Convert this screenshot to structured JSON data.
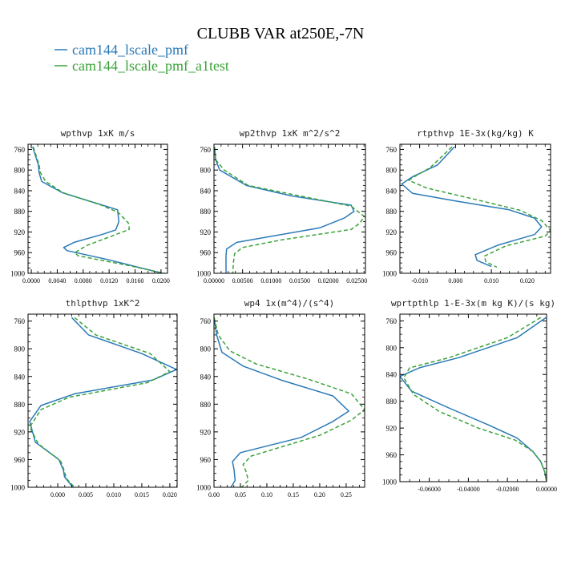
{
  "figure": {
    "title": "CLUBB VAR at250E,-7N"
  },
  "legend": [
    {
      "name": "cam144_lscale_pmf",
      "color": "#2a7ab8",
      "dash": "solid"
    },
    {
      "name": "cam144_lscale_pmf_a1test",
      "color": "#3aa33a",
      "dash": "dashed"
    }
  ],
  "chart_data": [
    {
      "type": "line",
      "title": "wpthvp  1xK m/s",
      "xlim": [
        -0.0005,
        0.021
      ],
      "ylim": [
        1000,
        750
      ],
      "xticks": [
        0.0,
        0.004,
        0.008,
        0.012,
        0.016,
        0.02
      ],
      "xtick_labels": [
        "0.0000",
        "0.0040",
        "0.0080",
        "0.0120",
        "0.0160",
        "0.0200"
      ],
      "yticks": [
        760,
        800,
        840,
        880,
        920,
        960,
        1000
      ],
      "series": [
        {
          "name": "cam144_lscale_pmf",
          "x": [
            0.0002,
            0.0011,
            0.0012,
            0.0016,
            0.0048,
            0.0133,
            0.0135,
            0.013,
            0.0111,
            0.0066,
            0.005,
            0.0055,
            0.012,
            0.0202
          ],
          "y": [
            755,
            790,
            805,
            822,
            844,
            877,
            900,
            916,
            924,
            940,
            950,
            956,
            974,
            1000
          ]
        },
        {
          "name": "cam144_lscale_pmf_a1test",
          "x": [
            0.0003,
            0.0012,
            0.0014,
            0.0022,
            0.0049,
            0.0108,
            0.0134,
            0.015,
            0.0151,
            0.0132,
            0.0086,
            0.0067,
            0.0072,
            0.015,
            0.0205
          ],
          "y": [
            755,
            790,
            805,
            822,
            844,
            868,
            882,
            903,
            915,
            924,
            946,
            960,
            966,
            985,
            1000
          ]
        }
      ]
    },
    {
      "type": "line",
      "title": "wp2thvp  1xK m^2/s^2",
      "xlim": [
        0.0,
        0.0265
      ],
      "ylim": [
        1000,
        750
      ],
      "xticks": [
        0.0,
        0.005,
        0.01,
        0.015,
        0.02,
        0.025
      ],
      "xtick_labels": [
        "0.00000",
        "0.00500",
        "0.01000",
        "0.01500",
        "0.02000",
        "0.02500"
      ],
      "yticks": [
        760,
        800,
        840,
        880,
        920,
        960,
        1000
      ],
      "series": [
        {
          "name": "cam144_lscale_pmf",
          "x": [
            0.0001,
            0.0003,
            0.001,
            0.0057,
            0.0135,
            0.024,
            0.0245,
            0.0228,
            0.0185,
            0.004,
            0.0022,
            0.0021,
            0.0021,
            0.0021
          ],
          "y": [
            755,
            780,
            800,
            830,
            850,
            868,
            880,
            893,
            912,
            940,
            953,
            967,
            982,
            1000
          ]
        },
        {
          "name": "cam144_lscale_pmf_a1test",
          "x": [
            0.0001,
            0.0003,
            0.0018,
            0.006,
            0.015,
            0.024,
            0.0263,
            0.0255,
            0.024,
            0.012,
            0.005,
            0.0036,
            0.0034,
            0.0033
          ],
          "y": [
            755,
            780,
            800,
            830,
            850,
            870,
            890,
            903,
            915,
            935,
            950,
            962,
            980,
            1000
          ]
        }
      ]
    },
    {
      "type": "line",
      "title": "rtpthvp  1E-3x(kg/kg) K",
      "xlim": [
        -0.0155,
        0.0265
      ],
      "ylim": [
        1000,
        750
      ],
      "xticks": [
        -0.01,
        0.0,
        0.01,
        0.02
      ],
      "xtick_labels": [
        "-0.010",
        "0.000",
        "0.010",
        "0.020"
      ],
      "yticks": [
        760,
        800,
        840,
        880,
        920,
        960,
        1000
      ],
      "series": [
        {
          "name": "cam144_lscale_pmf",
          "x": [
            -0.0003,
            -0.005,
            -0.012,
            -0.015,
            -0.012,
            0.0,
            0.015,
            0.022,
            0.024,
            0.022,
            0.012,
            0.0055,
            0.006,
            0.01
          ],
          "y": [
            755,
            790,
            813,
            827,
            845,
            860,
            877,
            893,
            910,
            925,
            945,
            964,
            975,
            987
          ]
        },
        {
          "name": "cam144_lscale_pmf_a1test",
          "x": [
            -0.001,
            -0.007,
            -0.0115,
            -0.013,
            -0.008,
            0.005,
            0.018,
            0.024,
            0.0265,
            0.025,
            0.014,
            0.008,
            0.0085,
            0.0115
          ],
          "y": [
            755,
            795,
            813,
            820,
            835,
            856,
            878,
            898,
            917,
            928,
            947,
            967,
            978,
            988
          ]
        }
      ]
    },
    {
      "type": "line",
      "title": "thlpthvp  1xK^2",
      "xlim": [
        -0.0053,
        0.0213
      ],
      "ylim": [
        1000,
        750
      ],
      "xticks": [
        0.0,
        0.005,
        0.01,
        0.015,
        0.02
      ],
      "xtick_labels": [
        "0.000",
        "0.005",
        "0.010",
        "0.015",
        "0.020"
      ],
      "yticks": [
        760,
        800,
        840,
        880,
        920,
        960,
        1000
      ],
      "series": [
        {
          "name": "cam144_lscale_pmf",
          "x": [
            0.0025,
            0.0055,
            0.015,
            0.0212,
            0.017,
            0.003,
            -0.003,
            -0.005,
            -0.004,
            0.0002,
            0.001,
            0.0012,
            0.0027
          ],
          "y": [
            755,
            780,
            807,
            830,
            845,
            865,
            882,
            905,
            935,
            960,
            975,
            985,
            1000
          ]
        },
        {
          "name": "cam144_lscale_pmf_a1test",
          "x": [
            0.003,
            0.0068,
            0.0165,
            0.02,
            0.016,
            0.002,
            -0.003,
            -0.005,
            -0.0035,
            0.0005,
            0.0012,
            0.0015,
            0.003
          ],
          "y": [
            755,
            780,
            807,
            833,
            849,
            870,
            888,
            913,
            937,
            962,
            977,
            987,
            1000
          ]
        }
      ]
    },
    {
      "type": "line",
      "title": "wp4  1x(m^4)/(s^4)",
      "xlim": [
        0.0,
        0.285
      ],
      "ylim": [
        1000,
        750
      ],
      "xticks": [
        0.0,
        0.05,
        0.1,
        0.15,
        0.2,
        0.25
      ],
      "xtick_labels": [
        "0.00",
        "0.05",
        "0.10",
        "0.15",
        "0.20",
        "0.25"
      ],
      "yticks": [
        760,
        800,
        840,
        880,
        920,
        960,
        1000
      ],
      "series": [
        {
          "name": "cam144_lscale_pmf",
          "x": [
            0.0003,
            0.005,
            0.015,
            0.055,
            0.13,
            0.225,
            0.255,
            0.225,
            0.165,
            0.05,
            0.035,
            0.038,
            0.04,
            0.032
          ],
          "y": [
            755,
            780,
            805,
            825,
            846,
            868,
            890,
            905,
            928,
            950,
            963,
            975,
            990,
            1000
          ]
        },
        {
          "name": "cam144_lscale_pmf_a1test",
          "x": [
            0.0003,
            0.008,
            0.03,
            0.08,
            0.175,
            0.26,
            0.285,
            0.26,
            0.2,
            0.07,
            0.055,
            0.06,
            0.065,
            0.052
          ],
          "y": [
            755,
            780,
            803,
            822,
            843,
            865,
            888,
            903,
            925,
            955,
            967,
            976,
            990,
            1000
          ]
        }
      ]
    },
    {
      "type": "line",
      "title": "wprtpthlp  1-E-3x(m kg K)/(s kg)",
      "xlim": [
        -0.075,
        0.0
      ],
      "ylim": [
        1000,
        750
      ],
      "xticks": [
        -0.06,
        -0.04,
        -0.02,
        0.0
      ],
      "xtick_labels": [
        "-0.06000",
        "-0.04000",
        "-0.02000",
        "0.00000"
      ],
      "yticks": [
        760,
        800,
        840,
        880,
        920,
        960,
        1000
      ],
      "series": [
        {
          "name": "cam144_lscale_pmf",
          "x": [
            -0.0003,
            -0.015,
            -0.045,
            -0.065,
            -0.075,
            -0.069,
            -0.05,
            -0.03,
            -0.015,
            -0.007,
            -0.003,
            -0.001,
            0.0
          ],
          "y": [
            755,
            785,
            815,
            830,
            843,
            865,
            890,
            915,
            935,
            955,
            970,
            985,
            1000
          ]
        },
        {
          "name": "cam144_lscale_pmf_a1test",
          "x": [
            -0.003,
            -0.02,
            -0.05,
            -0.07,
            -0.073,
            -0.068,
            -0.055,
            -0.035,
            -0.016,
            -0.007,
            -0.003,
            -0.001,
            0.0
          ],
          "y": [
            755,
            785,
            815,
            830,
            845,
            870,
            895,
            920,
            938,
            955,
            970,
            985,
            1000
          ]
        }
      ]
    }
  ]
}
